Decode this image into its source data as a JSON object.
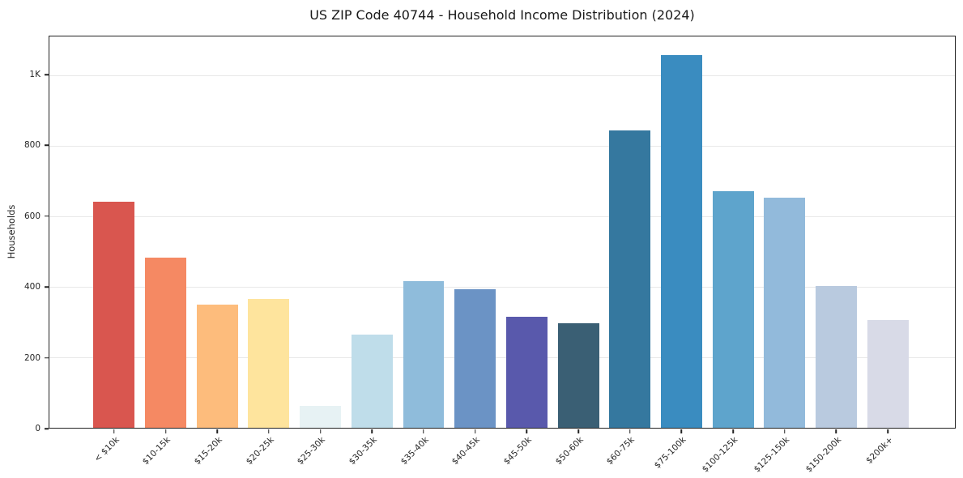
{
  "title": "US ZIP Code 40744 - Household Income Distribution (2024)",
  "chart_data": {
    "type": "bar",
    "title": "US ZIP Code 40744 - Household Income Distribution (2024)",
    "xlabel": "",
    "ylabel": "Households",
    "ylim": [
      0,
      1110
    ],
    "grid": true,
    "legend": "none",
    "categories": [
      "< $10k",
      "$10-15k",
      "$15-20k",
      "$20-25k",
      "$25-30k",
      "$30-35k",
      "$35-40k",
      "$40-45k",
      "$45-50k",
      "$50-60k",
      "$60-75k",
      "$75-100k",
      "$100-125k",
      "$125-150k",
      "$150-200k",
      "$200k+"
    ],
    "values": [
      641,
      483,
      349,
      366,
      62,
      264,
      416,
      393,
      315,
      297,
      844,
      1057,
      671,
      653,
      402,
      306
    ],
    "bar_colors": [
      "#D9564F",
      "#F58963",
      "#FDBC7C",
      "#FEE49D",
      "#E7F2F4",
      "#BFDDEA",
      "#8FBCDB",
      "#6B93C5",
      "#5959AC",
      "#3A5F74",
      "#35789F",
      "#3A8CC0",
      "#5EA4CC",
      "#92BADB",
      "#B9CADF",
      "#D8DAE7"
    ],
    "y_ticks": [
      {
        "value": 0,
        "label": "0"
      },
      {
        "value": 200,
        "label": "200"
      },
      {
        "value": 400,
        "label": "400"
      },
      {
        "value": 600,
        "label": "600"
      },
      {
        "value": 800,
        "label": "800"
      },
      {
        "value": 1000,
        "label": "1K"
      }
    ],
    "colors": {
      "grid": "#e8e8e8",
      "spine": "#222222",
      "text": "#262626"
    }
  }
}
